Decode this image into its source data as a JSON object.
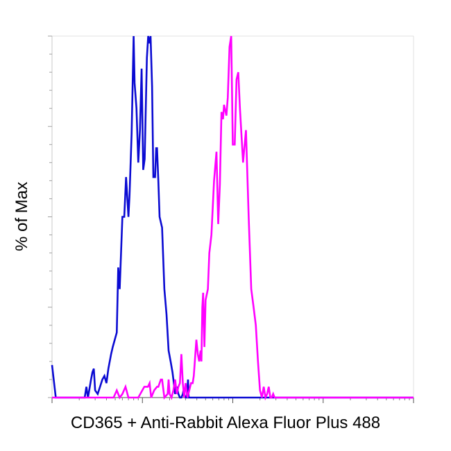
{
  "chart_data": {
    "type": "line",
    "title": "",
    "xlabel": "CD365 + Anti-Rabbit Alexa Fluor Plus 488",
    "ylabel": "% of Max",
    "x_scale": "log",
    "xlim": [
      1,
      10000
    ],
    "ylim": [
      0,
      100
    ],
    "grid": false,
    "legend": "none",
    "series": [
      {
        "color": "#0a0ad2",
        "points": [
          [
            1.0,
            9
          ],
          [
            1.1,
            0
          ],
          [
            1.5,
            0
          ],
          [
            2.3,
            0
          ],
          [
            2.4,
            3
          ],
          [
            2.5,
            0
          ],
          [
            2.7,
            5
          ],
          [
            2.8,
            7
          ],
          [
            2.9,
            8
          ],
          [
            3.0,
            2
          ],
          [
            3.2,
            1
          ],
          [
            3.4,
            3
          ],
          [
            3.6,
            5
          ],
          [
            3.8,
            6
          ],
          [
            4.0,
            4
          ],
          [
            4.2,
            8
          ],
          [
            4.5,
            12
          ],
          [
            4.7,
            14
          ],
          [
            5.2,
            18
          ],
          [
            5.4,
            36
          ],
          [
            5.6,
            30
          ],
          [
            6.0,
            50
          ],
          [
            6.3,
            50
          ],
          [
            6.6,
            61
          ],
          [
            7.0,
            50
          ],
          [
            7.2,
            56
          ],
          [
            7.6,
            73
          ],
          [
            8.0,
            100
          ],
          [
            8.2,
            87
          ],
          [
            8.6,
            80
          ],
          [
            9.0,
            65
          ],
          [
            9.4,
            74
          ],
          [
            9.8,
            91
          ],
          [
            10.2,
            63
          ],
          [
            10.6,
            66
          ],
          [
            11.2,
            94
          ],
          [
            11.6,
            100
          ],
          [
            12.0,
            98
          ],
          [
            12.3,
            100
          ],
          [
            12.8,
            86
          ],
          [
            13.2,
            61
          ],
          [
            13.8,
            61
          ],
          [
            14.2,
            69
          ],
          [
            14.5,
            69
          ],
          [
            15.0,
            60
          ],
          [
            15.5,
            50
          ],
          [
            16.5,
            47
          ],
          [
            17.5,
            30
          ],
          [
            18.5,
            23
          ],
          [
            19.5,
            13
          ],
          [
            20.5,
            10
          ],
          [
            21.5,
            7
          ],
          [
            22.0,
            5
          ],
          [
            22.5,
            3
          ],
          [
            23.0,
            1
          ],
          [
            24.0,
            3
          ],
          [
            25.0,
            1
          ],
          [
            26.0,
            0
          ],
          [
            27.0,
            0
          ],
          [
            28.0,
            1
          ],
          [
            28.5,
            2
          ],
          [
            29.0,
            1
          ],
          [
            30.0,
            0
          ],
          [
            31.0,
            0
          ],
          [
            32.0,
            5
          ],
          [
            32.5,
            0
          ],
          [
            33.0,
            0
          ],
          [
            100,
            0
          ],
          [
            10000,
            0
          ]
        ]
      },
      {
        "color": "#ff00ff",
        "points": [
          [
            1.0,
            0
          ],
          [
            4.8,
            0
          ],
          [
            5.2,
            2
          ],
          [
            5.6,
            0
          ],
          [
            6.0,
            1
          ],
          [
            6.5,
            3
          ],
          [
            7.0,
            0
          ],
          [
            9.0,
            0
          ],
          [
            10.5,
            3
          ],
          [
            11.5,
            3
          ],
          [
            12.0,
            4
          ],
          [
            12.5,
            0
          ],
          [
            13.5,
            2
          ],
          [
            14.5,
            3
          ],
          [
            15.0,
            3
          ],
          [
            16.0,
            5
          ],
          [
            16.5,
            5
          ],
          [
            17.5,
            0
          ],
          [
            19.0,
            1
          ],
          [
            19.5,
            5
          ],
          [
            20.0,
            1
          ],
          [
            21.0,
            0
          ],
          [
            22.0,
            2
          ],
          [
            23.0,
            5
          ],
          [
            24.0,
            1
          ],
          [
            25.0,
            3
          ],
          [
            26.0,
            4
          ],
          [
            27.0,
            12
          ],
          [
            28.0,
            4
          ],
          [
            29.0,
            0
          ],
          [
            30.0,
            4
          ],
          [
            31.5,
            0
          ],
          [
            33.0,
            2
          ],
          [
            34.5,
            4
          ],
          [
            36.0,
            4
          ],
          [
            37.0,
            6
          ],
          [
            38.0,
            10
          ],
          [
            39.5,
            16
          ],
          [
            41.0,
            12
          ],
          [
            42.5,
            10
          ],
          [
            44.0,
            13
          ],
          [
            45.0,
            10
          ],
          [
            46.0,
            25
          ],
          [
            47.0,
            29
          ],
          [
            48.5,
            14
          ],
          [
            50.0,
            27
          ],
          [
            53.0,
            30
          ],
          [
            55.0,
            40
          ],
          [
            58.0,
            45
          ],
          [
            62.0,
            60
          ],
          [
            66.0,
            68
          ],
          [
            69.0,
            48
          ],
          [
            72.0,
            59
          ],
          [
            75.0,
            79
          ],
          [
            78.0,
            77
          ],
          [
            80.0,
            81
          ],
          [
            85.0,
            78
          ],
          [
            88.0,
            83
          ],
          [
            92.0,
            97
          ],
          [
            96.0,
            100
          ],
          [
            100.0,
            70
          ],
          [
            105.0,
            70
          ],
          [
            110.0,
            88
          ],
          [
            115.0,
            90
          ],
          [
            120.0,
            80
          ],
          [
            130.0,
            65
          ],
          [
            140.0,
            74
          ],
          [
            150.0,
            50
          ],
          [
            160.0,
            30
          ],
          [
            170.0,
            25
          ],
          [
            180.0,
            20
          ],
          [
            190.0,
            10
          ],
          [
            200.0,
            2
          ],
          [
            210.0,
            0
          ],
          [
            220.0,
            3
          ],
          [
            230.0,
            0
          ],
          [
            240.0,
            1
          ],
          [
            250.0,
            3
          ],
          [
            260.0,
            0
          ],
          [
            270.0,
            0
          ],
          [
            280.0,
            1
          ],
          [
            290.0,
            0
          ],
          [
            300.0,
            0
          ],
          [
            10000,
            0
          ]
        ]
      }
    ]
  }
}
